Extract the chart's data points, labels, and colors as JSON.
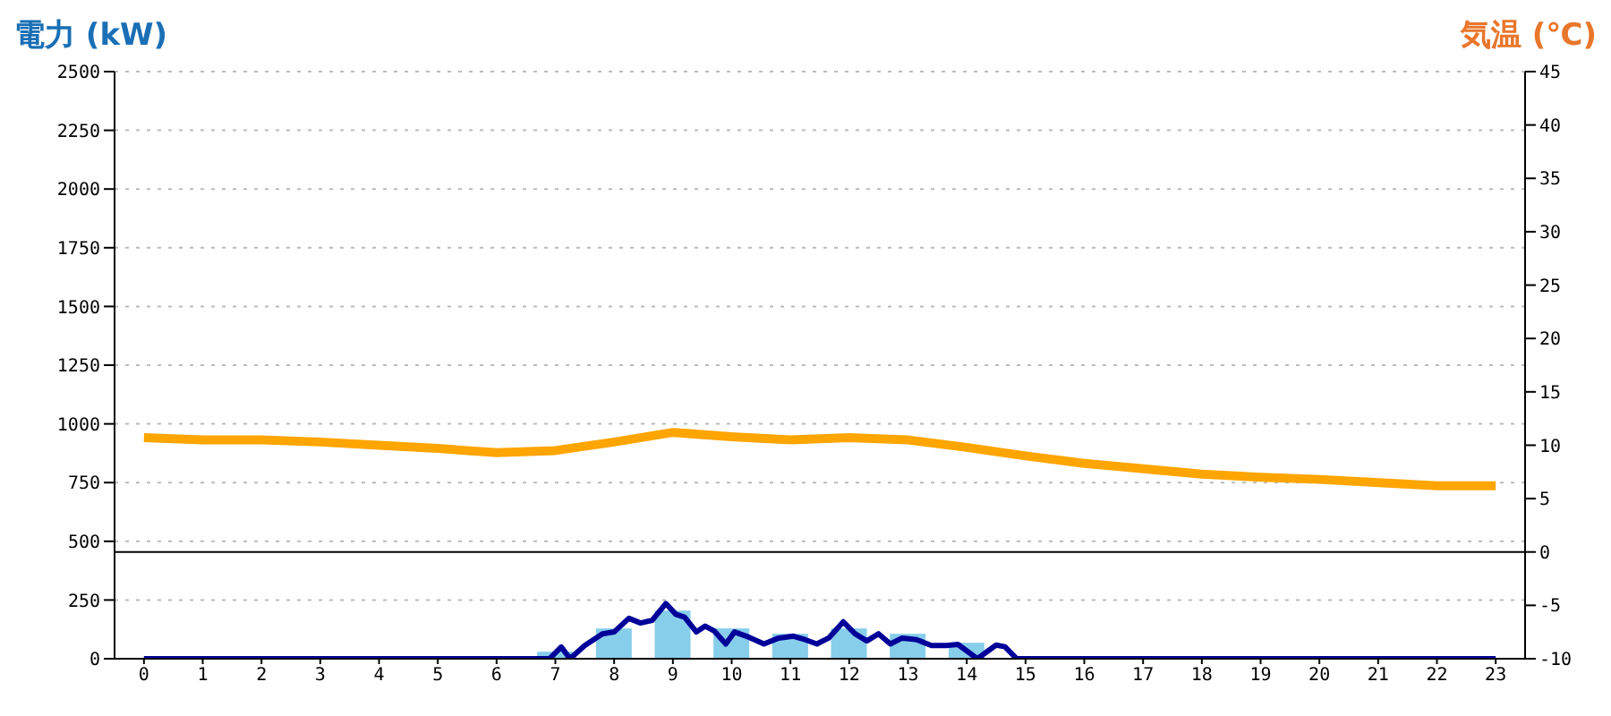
{
  "chart_data": {
    "type": "bar",
    "ylabel": "電力 (kW)",
    "y2label": "気温 (℃)",
    "x": [
      0,
      1,
      2,
      3,
      4,
      5,
      6,
      7,
      8,
      9,
      10,
      11,
      12,
      13,
      14,
      15,
      16,
      17,
      18,
      19,
      20,
      21,
      22,
      23
    ],
    "xlim": [
      -0.5,
      23.5
    ],
    "xticks": [
      0,
      1,
      2,
      3,
      4,
      5,
      6,
      7,
      8,
      9,
      10,
      11,
      12,
      13,
      14,
      15,
      16,
      17,
      18,
      19,
      20,
      21,
      22,
      23
    ],
    "ylim": [
      0,
      2500
    ],
    "yticks": [
      0,
      250,
      500,
      750,
      1000,
      1250,
      1500,
      1750,
      2000,
      2250,
      2500
    ],
    "y2lim": [
      -10,
      45
    ],
    "y2ticks": [
      -10,
      -5,
      0,
      5,
      10,
      15,
      20,
      25,
      30,
      35,
      40,
      45
    ],
    "grid": "y",
    "legend": false,
    "ref_lines": [
      {
        "axis": "y2",
        "value": 0,
        "color": "#000000"
      }
    ],
    "series": [
      {
        "color": "#87ceeb",
        "values": [
          0,
          0,
          0,
          0,
          0,
          0,
          0,
          30,
          129,
          205,
          129,
          106,
          129,
          106,
          68,
          0,
          0,
          0,
          0,
          0,
          0,
          0,
          0,
          0
        ]
      },
      {
        "type": "line",
        "color": "#000099",
        "x": [
          0,
          6.9,
          7.1,
          7.25,
          7.5,
          7.8,
          8,
          8.25,
          8.45,
          8.65,
          8.88,
          9.05,
          9.2,
          9.4,
          9.55,
          9.7,
          9.9,
          10.05,
          10.25,
          10.55,
          10.8,
          11.05,
          11.25,
          11.45,
          11.65,
          11.9,
          12.1,
          12.3,
          12.5,
          12.7,
          12.9,
          13.15,
          13.4,
          13.65,
          13.85,
          14.18,
          14.5,
          14.65,
          14.85,
          23
        ],
        "values": [
          0,
          0,
          50,
          0,
          56,
          106,
          114,
          172,
          152,
          164,
          235,
          189,
          177,
          114,
          139,
          119,
          63,
          114,
          96,
          63,
          88,
          96,
          81,
          63,
          88,
          157,
          106,
          76,
          106,
          63,
          88,
          81,
          56,
          56,
          61,
          0,
          58,
          51,
          0,
          0
        ]
      },
      {
        "type": "line",
        "axis": "y2",
        "color": "#ffa500",
        "values": [
          10.7,
          10.5,
          10.5,
          10.3,
          10,
          9.7,
          9.3,
          9.5,
          10.3,
          11.2,
          10.8,
          10.5,
          10.7,
          10.5,
          9.8,
          9,
          8.3,
          7.8,
          7.3,
          7,
          6.8,
          6.5,
          6.2,
          6.2
        ]
      }
    ]
  }
}
